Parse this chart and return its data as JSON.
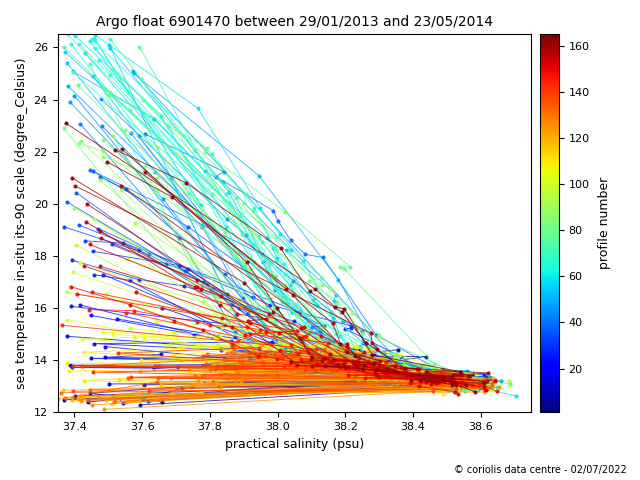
{
  "title": "Argo float 6901470 between 29/01/2013 and 23/05/2014",
  "xlabel": "practical salinity (psu)",
  "ylabel": "sea temperature in-situ its-90 scale (degree_Celsius)",
  "colorbar_label": "profile number",
  "xlim": [
    37.35,
    38.75
  ],
  "ylim": [
    12.0,
    26.5
  ],
  "cmap": "jet",
  "vmin": 1,
  "vmax": 165,
  "copyright_text": "© coriolis data centre - 02/07/2022",
  "n_profiles": 165,
  "seed": 42,
  "figsize": [
    6.4,
    4.8
  ],
  "dpi": 100
}
